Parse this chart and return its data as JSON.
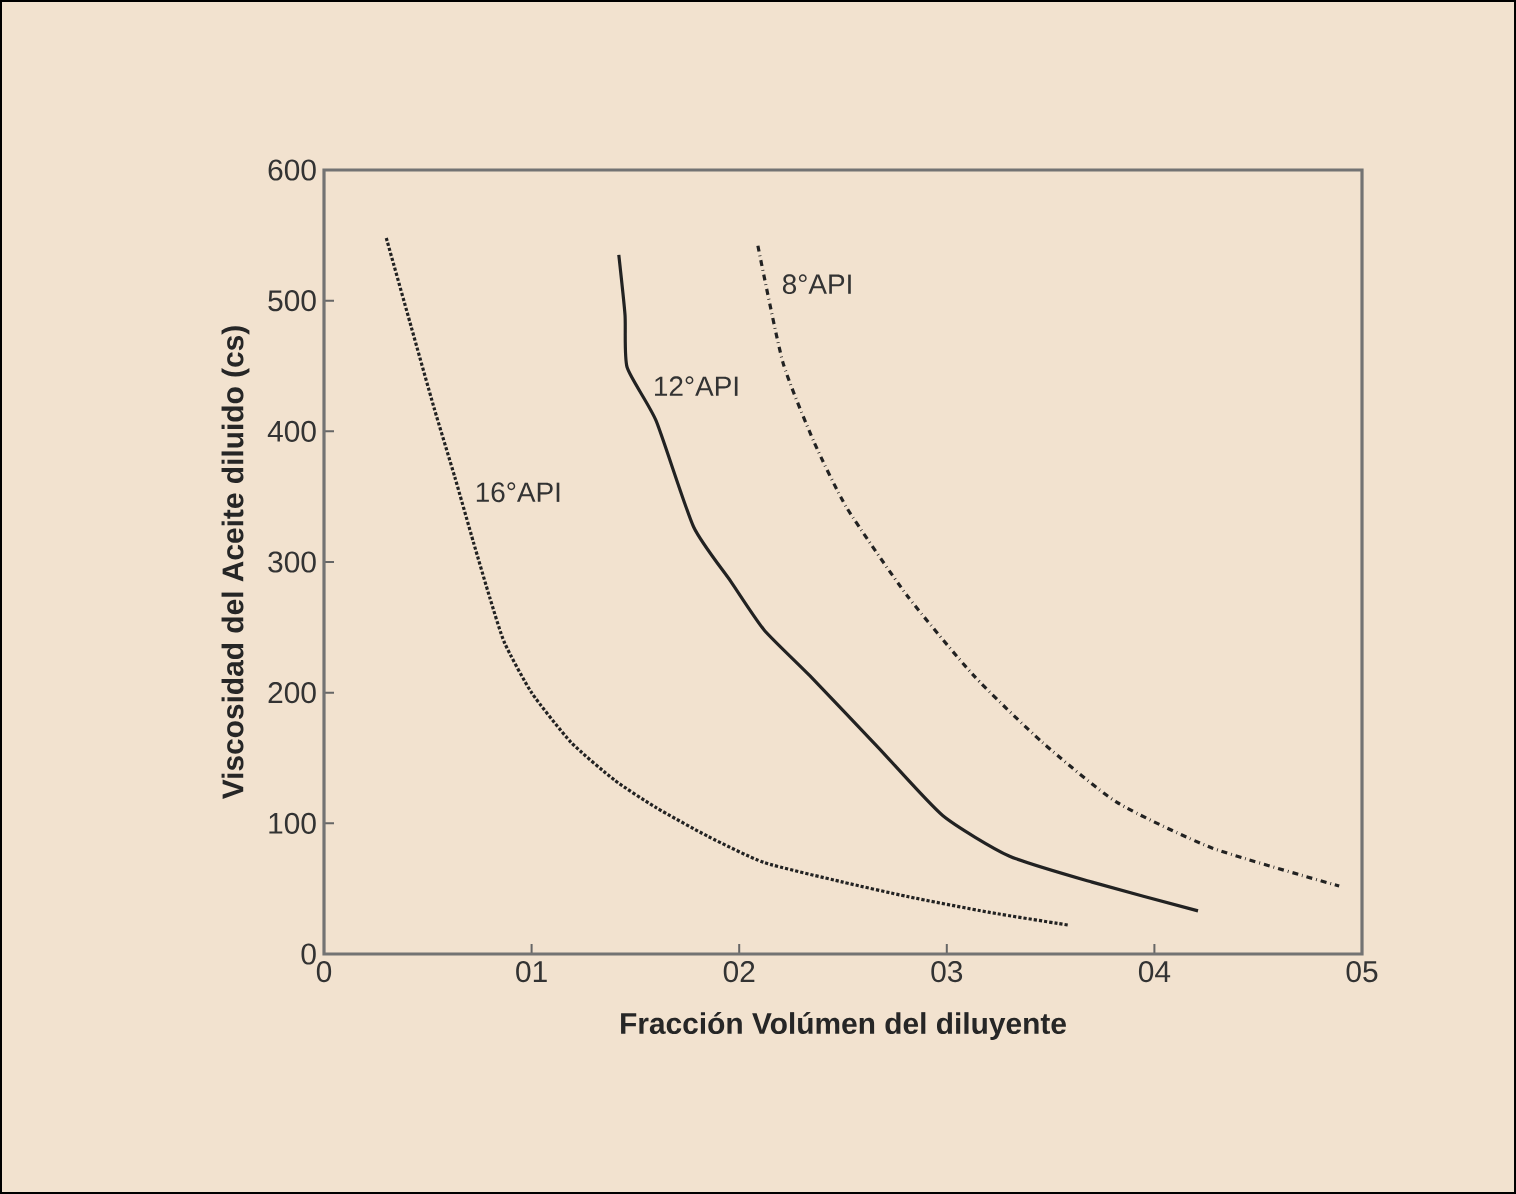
{
  "chart_data": {
    "type": "line",
    "xlabel": "Fracción Volúmen del diluyente",
    "ylabel": "Viscosidad del Aceite diluido (cs)",
    "xlim": [
      0,
      5
    ],
    "ylim": [
      0,
      600
    ],
    "xticks": [
      0,
      {
        "value": 1,
        "label": "01"
      },
      {
        "value": 2,
        "label": "02"
      },
      {
        "value": 3,
        "label": "03"
      },
      {
        "value": 4,
        "label": "04"
      },
      {
        "value": 5,
        "label": "05"
      }
    ],
    "yticks": [
      0,
      100,
      200,
      300,
      400,
      500,
      600
    ],
    "grid": false,
    "legend": false,
    "marker": "none",
    "series": [
      {
        "name": "16°API",
        "color": "#222222",
        "line_style": "dotted",
        "x": [
          0.3,
          0.42,
          0.53,
          0.63,
          0.72,
          0.8,
          0.87,
          1.0,
          1.19,
          1.4,
          1.6,
          1.85,
          2.12,
          2.5,
          2.81,
          3.2,
          3.59
        ],
        "values": [
          548,
          480,
          418,
          365,
          315,
          272,
          238,
          200,
          162,
          133,
          112,
          90,
          70,
          55,
          44,
          32,
          22
        ]
      },
      {
        "name": "12°API",
        "color": "#222222",
        "line_style": "solid",
        "x": [
          1.42,
          1.45,
          1.46,
          1.6,
          1.78,
          1.96,
          2.12,
          2.34,
          2.67,
          2.98,
          3.3,
          3.7,
          4.21
        ],
        "values": [
          535,
          489,
          449,
          408,
          327,
          285,
          248,
          213,
          158,
          106,
          75,
          55,
          33
        ]
      },
      {
        "name": "8°API",
        "color": "#222222",
        "line_style": "dashdot",
        "x": [
          2.09,
          2.21,
          2.36,
          2.52,
          2.81,
          3.13,
          3.46,
          3.82,
          4.28,
          4.89
        ],
        "values": [
          542,
          453,
          392,
          341,
          274,
          213,
          162,
          116,
          81,
          52
        ]
      }
    ]
  }
}
